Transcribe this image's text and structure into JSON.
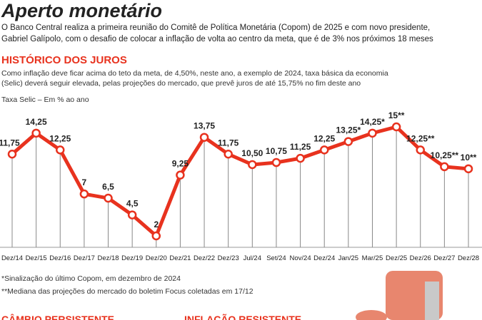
{
  "header": {
    "title": "Aperto monetário",
    "intro_1": "O Banco Central realiza a primeira reunião do Comitê de Política Monetária (Copom) de 2025 e com novo presidente,",
    "intro_2": "Gabriel Galípolo, com o desafio de colocar a inflação de volta ao centro da meta, que é de 3% nos próximos 18 meses"
  },
  "chart_data": {
    "type": "line",
    "title": "HISTÓRICO DOS JUROS",
    "subtitle_1": "Como inflação deve ficar acima do teto da meta, de 4,50%, neste ano, a exemplo de 2024, taxa básica da economia",
    "subtitle_2": "(Selic) deverá seguir elevada, pelas projeções do mercado, que prevê juros de até 15,75% no fim deste ano",
    "y_label": "Taxa Selic – Em % ao ano",
    "categories": [
      "Dez/14",
      "Dez/15",
      "Dez/16",
      "Dez/17",
      "Dez/18",
      "Dez/19",
      "Dez/20",
      "Dez/21",
      "Dez/22",
      "Dez/23",
      "Jul/24",
      "Set/24",
      "Nov/24",
      "Dez/24",
      "Jan/25",
      "Mar/25",
      "Dez/25",
      "Dez/26",
      "Dez/27",
      "Dez/28"
    ],
    "values": [
      11.75,
      14.25,
      12.25,
      7,
      6.5,
      4.5,
      2,
      9.25,
      13.75,
      11.75,
      10.5,
      10.75,
      11.25,
      12.25,
      13.25,
      14.25,
      15,
      12.25,
      10.25,
      10
    ],
    "value_labels": [
      "11,75",
      "14,25",
      "12,25",
      "7",
      "6,5",
      "4,5",
      "2",
      "9,25",
      "13,75",
      "11,75",
      "10,50",
      "10,75",
      "11,25",
      "12,25",
      "13,25*",
      "14,25*",
      "15**",
      "12,25**",
      "10,25**",
      "10**"
    ],
    "color": "#e8321e"
  },
  "footnotes": [
    "*Sinalização do último Copom, em dezembro de 2024",
    "**Mediana das projeções do mercado do boletim Focus coletadas em 17/12"
  ],
  "sections": [
    "CÂMBIO PERSISTENTE",
    "INFLAÇÃO RESISTENTE"
  ]
}
